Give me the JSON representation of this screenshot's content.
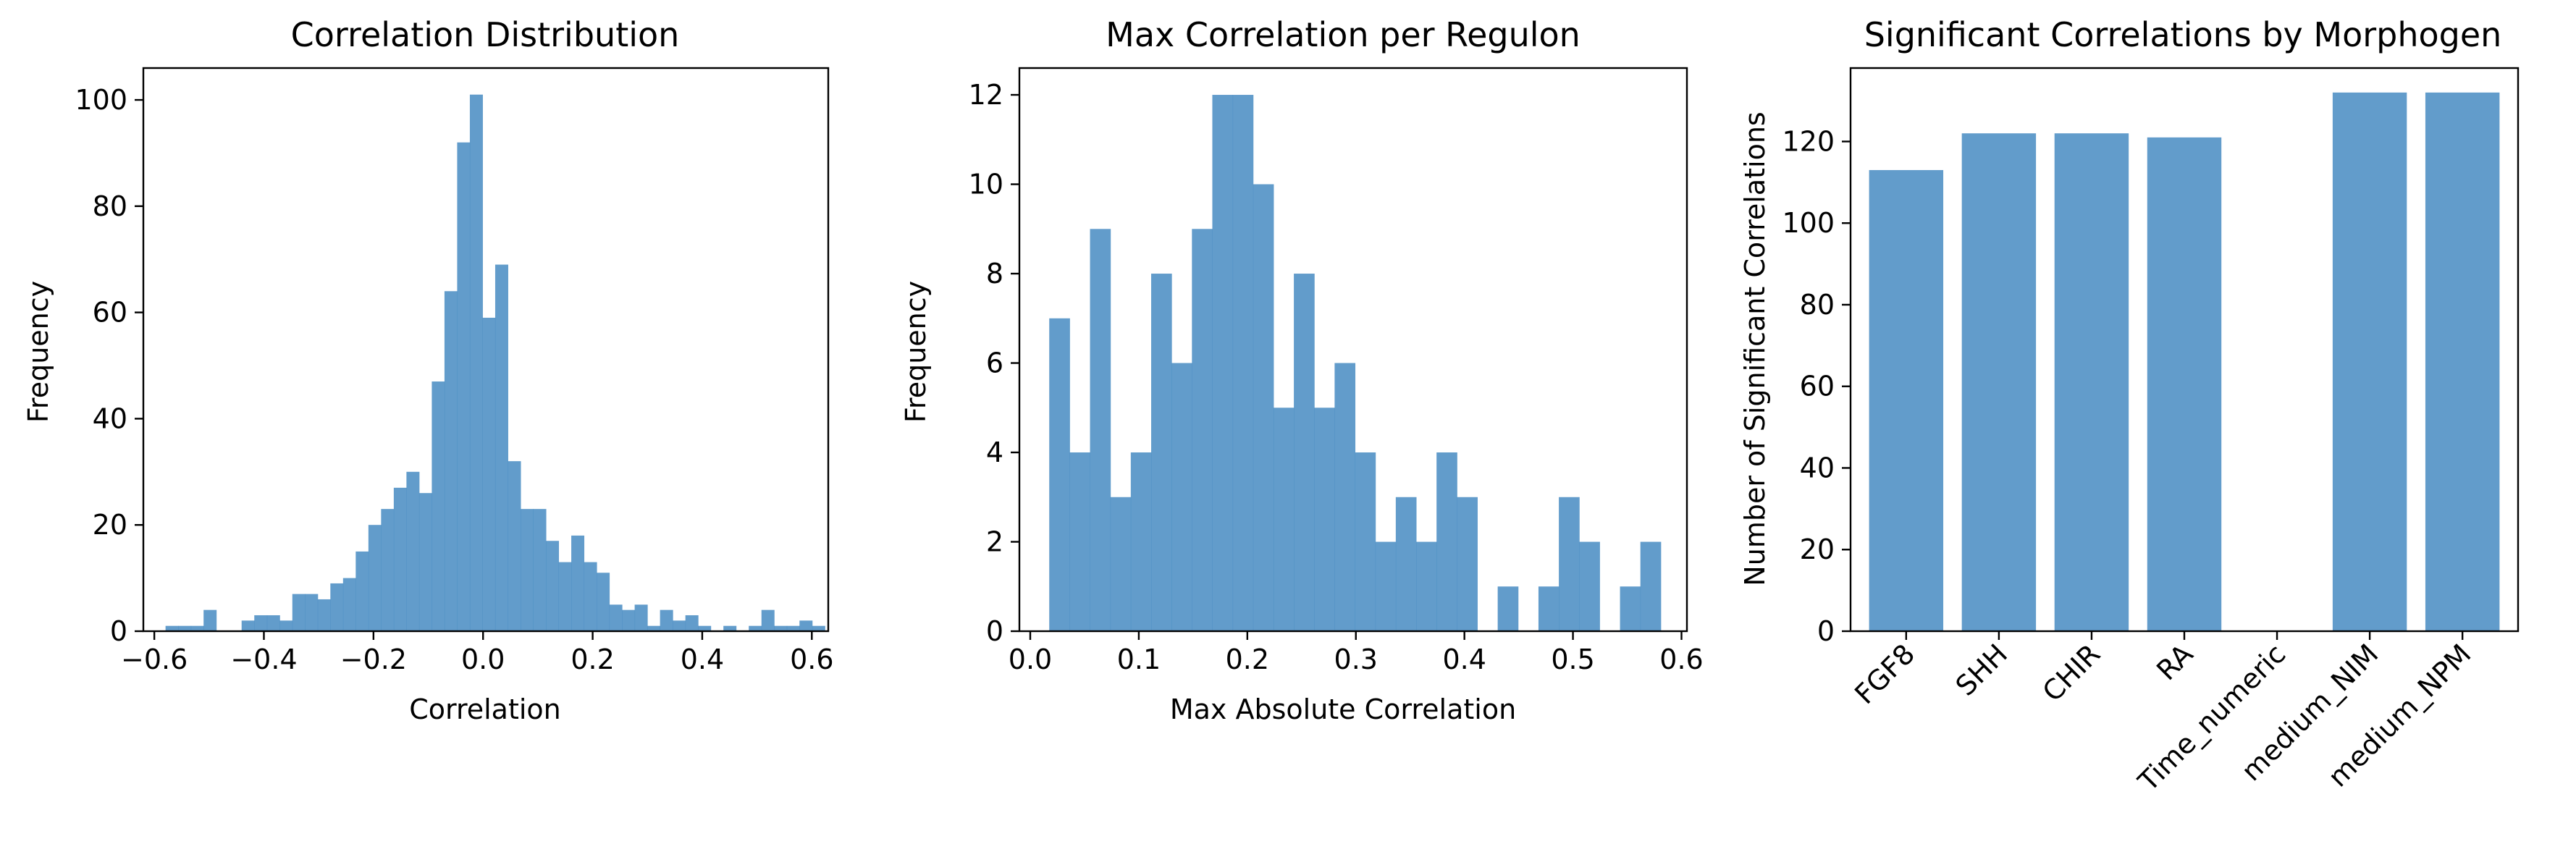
{
  "bar_color": "#4c8ec4",
  "bar_opacity": 0.88,
  "chart_data": [
    {
      "type": "bar",
      "subtype": "histogram",
      "title": "Correlation Distribution",
      "xlabel": "Correlation",
      "ylabel": "Frequency",
      "xlim": [
        -0.62,
        0.63
      ],
      "ylim": [
        0,
        106
      ],
      "xticks": [
        -0.6,
        -0.4,
        -0.2,
        0.0,
        0.2,
        0.4,
        0.6
      ],
      "xtick_labels": [
        "−0.6",
        "−0.4",
        "−0.2",
        "0.0",
        "0.2",
        "0.4",
        "0.6"
      ],
      "yticks": [
        0,
        20,
        40,
        60,
        80,
        100
      ],
      "ytick_labels": [
        "0",
        "20",
        "40",
        "60",
        "80",
        "100"
      ],
      "bin_start": -0.5795,
      "bin_width": 0.02314,
      "counts": [
        1,
        1,
        1,
        4,
        0,
        0,
        2,
        3,
        3,
        2,
        7,
        7,
        6,
        9,
        10,
        15,
        20,
        23,
        27,
        30,
        26,
        47,
        64,
        92,
        101,
        59,
        69,
        32,
        23,
        23,
        17,
        13,
        18,
        13,
        11,
        5,
        4,
        5,
        1,
        4,
        2,
        3,
        1,
        0,
        1,
        0,
        1,
        4,
        1,
        1,
        2,
        1
      ]
    },
    {
      "type": "bar",
      "subtype": "histogram",
      "title": "Max Correlation per Regulon",
      "xlabel": "Max Absolute Correlation",
      "ylabel": "Frequency",
      "xlim": [
        -0.01,
        0.605
      ],
      "ylim": [
        0,
        12.6
      ],
      "xticks": [
        0.0,
        0.1,
        0.2,
        0.3,
        0.4,
        0.5,
        0.6
      ],
      "xtick_labels": [
        "0.0",
        "0.1",
        "0.2",
        "0.3",
        "0.4",
        "0.5",
        "0.6"
      ],
      "yticks": [
        0,
        2,
        4,
        6,
        8,
        10,
        12
      ],
      "ytick_labels": [
        "0",
        "2",
        "4",
        "6",
        "8",
        "10",
        "12"
      ],
      "bin_start": 0.0175,
      "bin_width": 0.01878,
      "counts": [
        7,
        4,
        9,
        3,
        4,
        8,
        6,
        9,
        12,
        12,
        10,
        5,
        8,
        5,
        6,
        4,
        2,
        3,
        2,
        4,
        3,
        0,
        1,
        0,
        1,
        3,
        2,
        0,
        1,
        2
      ]
    },
    {
      "type": "bar",
      "title": "Significant Correlations by Morphogen",
      "xlabel": "",
      "ylabel": "Number of Significant Correlations",
      "ylim": [
        0,
        138
      ],
      "yticks": [
        0,
        20,
        40,
        60,
        80,
        100,
        120
      ],
      "ytick_labels": [
        "0",
        "20",
        "40",
        "60",
        "80",
        "100",
        "120"
      ],
      "categories": [
        "FGF8",
        "SHH",
        "CHIR",
        "RA",
        "Time_numeric",
        "medium_NIM",
        "medium_NPM"
      ],
      "values": [
        113,
        122,
        122,
        121,
        0,
        132,
        132
      ]
    }
  ]
}
